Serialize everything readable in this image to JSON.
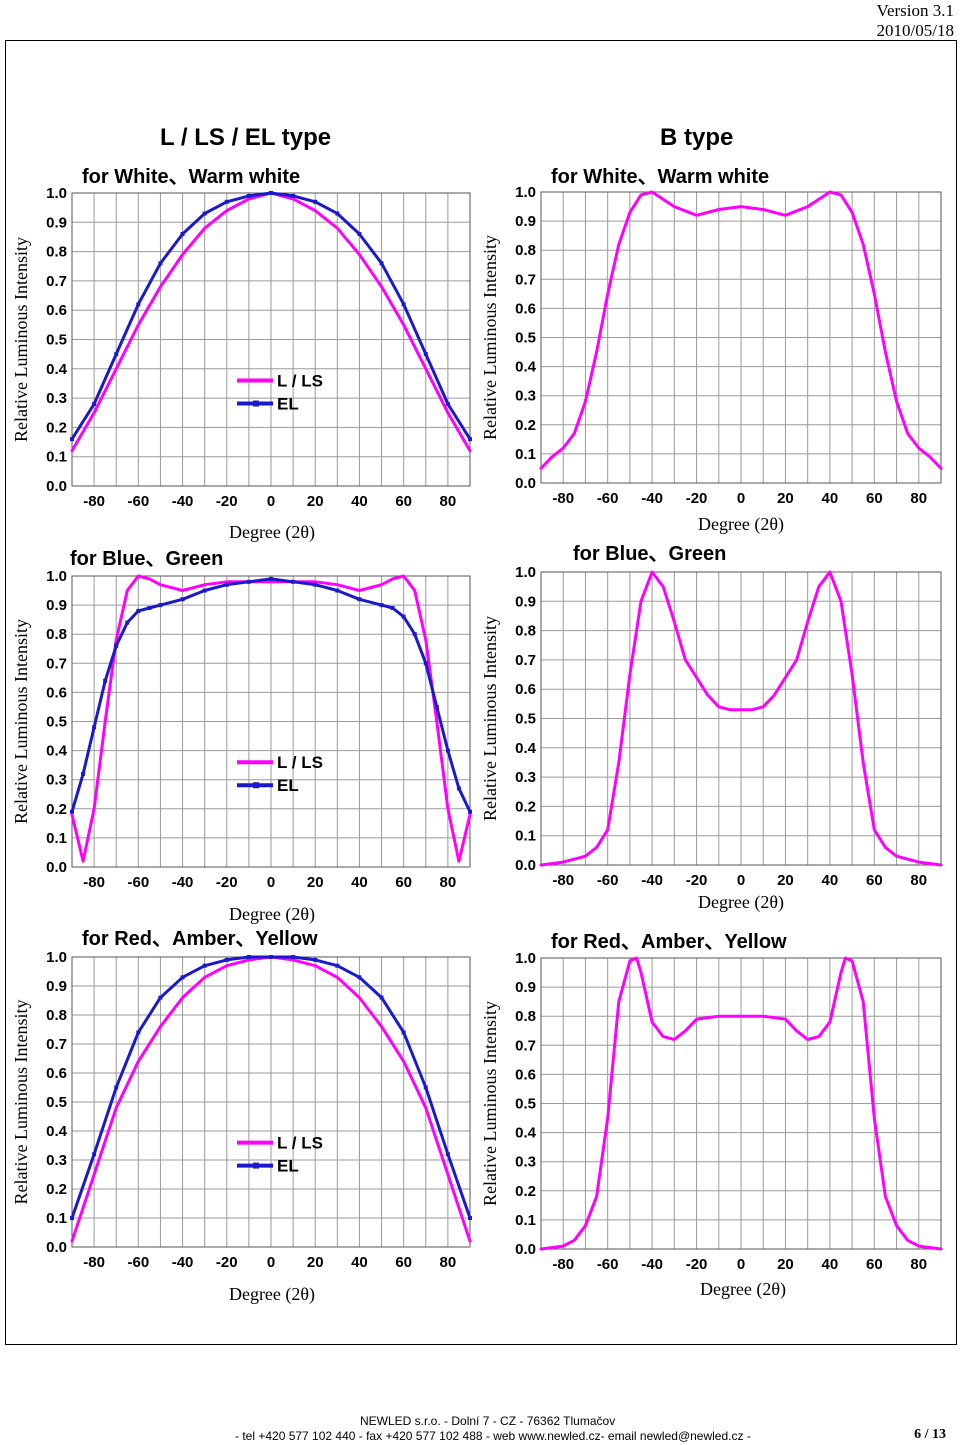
{
  "header": {
    "version": "Version 3.1",
    "date": "2010/05/18"
  },
  "footer": {
    "line1": "NEWLED s.r.o. - Dolní 7 - CZ - 76362 Tlumačov",
    "line2": "- tel +420 577 102 440 - fax +420 577 102 488 - web www.newled.cz- email newled@newled.cz -",
    "page": "6 / 13"
  },
  "sections": {
    "left_title": "L / LS / EL  type",
    "right_title": "B type"
  },
  "colors": {
    "ls": "#ff00ff",
    "el": "#1a1acc",
    "grid": "#9a9a9a"
  },
  "chart_data": [
    {
      "type": "line",
      "title": "for White、Warm white",
      "xlabel": "Degree (2θ)",
      "ylabel": "Relative Luminous Intensity",
      "xlim": [
        -90,
        90
      ],
      "ylim": [
        0,
        1
      ],
      "xticks": [
        "-80",
        "-60",
        "-40",
        "-20",
        "0",
        "20",
        "40",
        "60",
        "80"
      ],
      "yticks": [
        "0.0",
        "0.1",
        "0.2",
        "0.3",
        "0.4",
        "0.5",
        "0.6",
        "0.7",
        "0.8",
        "0.9",
        "1.0"
      ],
      "x": [
        -90,
        -80,
        -70,
        -60,
        -50,
        -40,
        -30,
        -20,
        -10,
        0,
        10,
        20,
        30,
        40,
        50,
        60,
        70,
        80,
        90
      ],
      "series": [
        {
          "name": "L / LS",
          "values": [
            0.12,
            0.25,
            0.4,
            0.55,
            0.68,
            0.79,
            0.88,
            0.94,
            0.98,
            1.0,
            0.98,
            0.94,
            0.88,
            0.79,
            0.68,
            0.55,
            0.4,
            0.25,
            0.12
          ]
        },
        {
          "name": "EL",
          "values": [
            0.16,
            0.28,
            0.45,
            0.62,
            0.76,
            0.86,
            0.93,
            0.97,
            0.99,
            1.0,
            0.99,
            0.97,
            0.93,
            0.86,
            0.76,
            0.62,
            0.45,
            0.28,
            0.16
          ]
        }
      ],
      "legend": "center-right",
      "grid": true
    },
    {
      "type": "line",
      "title": "for Blue、Green",
      "xlabel": "Degree (2θ)",
      "ylabel": "Relative Luminous Intensity",
      "xlim": [
        -90,
        90
      ],
      "ylim": [
        0,
        1
      ],
      "xticks": [
        "-80",
        "-60",
        "-40",
        "-20",
        "0",
        "20",
        "40",
        "60",
        "80"
      ],
      "yticks": [
        "0.0",
        "0.1",
        "0.2",
        "0.3",
        "0.4",
        "0.5",
        "0.6",
        "0.7",
        "0.8",
        "0.9",
        "1.0"
      ],
      "x": [
        -90,
        -85,
        -80,
        -75,
        -70,
        -65,
        -60,
        -55,
        -50,
        -40,
        -30,
        -20,
        -10,
        0,
        10,
        20,
        30,
        40,
        50,
        55,
        60,
        65,
        70,
        75,
        80,
        85,
        90
      ],
      "series": [
        {
          "name": "L / LS",
          "values": [
            0.18,
            0.02,
            0.2,
            0.5,
            0.78,
            0.95,
            1.0,
            0.99,
            0.97,
            0.95,
            0.97,
            0.98,
            0.98,
            0.98,
            0.98,
            0.98,
            0.97,
            0.95,
            0.97,
            0.99,
            1.0,
            0.95,
            0.78,
            0.5,
            0.2,
            0.02,
            0.18
          ]
        },
        {
          "name": "EL",
          "values": [
            0.19,
            0.32,
            0.48,
            0.64,
            0.76,
            0.84,
            0.88,
            0.89,
            0.9,
            0.92,
            0.95,
            0.97,
            0.98,
            0.99,
            0.98,
            0.97,
            0.95,
            0.92,
            0.9,
            0.89,
            0.86,
            0.8,
            0.7,
            0.55,
            0.4,
            0.27,
            0.19
          ]
        }
      ],
      "legend": "center-right",
      "grid": true
    },
    {
      "type": "line",
      "title": "for Red、Amber、Yellow",
      "xlabel": "Degree (2θ)",
      "ylabel": "Relative Luminous Intensity",
      "xlim": [
        -90,
        90
      ],
      "ylim": [
        0,
        1
      ],
      "xticks": [
        "-80",
        "-60",
        "-40",
        "-20",
        "0",
        "20",
        "40",
        "60",
        "80"
      ],
      "yticks": [
        "0.0",
        "0.1",
        "0.2",
        "0.3",
        "0.4",
        "0.5",
        "0.6",
        "0.7",
        "0.8",
        "0.9",
        "1.0"
      ],
      "x": [
        -90,
        -80,
        -70,
        -60,
        -50,
        -40,
        -30,
        -20,
        -10,
        0,
        10,
        20,
        30,
        40,
        50,
        60,
        70,
        80,
        90
      ],
      "series": [
        {
          "name": "L / LS",
          "values": [
            0.02,
            0.25,
            0.48,
            0.64,
            0.76,
            0.86,
            0.93,
            0.97,
            0.99,
            1.0,
            0.99,
            0.97,
            0.93,
            0.86,
            0.76,
            0.64,
            0.48,
            0.25,
            0.02
          ]
        },
        {
          "name": "EL",
          "values": [
            0.1,
            0.32,
            0.55,
            0.74,
            0.86,
            0.93,
            0.97,
            0.99,
            1.0,
            1.0,
            1.0,
            0.99,
            0.97,
            0.93,
            0.86,
            0.74,
            0.55,
            0.32,
            0.1
          ]
        }
      ],
      "legend": "center-right",
      "grid": true
    },
    {
      "type": "line",
      "title": "for White、Warm white",
      "xlabel": "Degree (2θ)",
      "ylabel": "Relative Luminous Intensity",
      "xlim": [
        -90,
        90
      ],
      "ylim": [
        0,
        1
      ],
      "xticks": [
        "-80",
        "-60",
        "-40",
        "-20",
        "0",
        "20",
        "40",
        "60",
        "80"
      ],
      "yticks": [
        "0.0",
        "0.1",
        "0.2",
        "0.3",
        "0.4",
        "0.5",
        "0.6",
        "0.7",
        "0.8",
        "0.9",
        "1.0"
      ],
      "x": [
        -90,
        -85,
        -80,
        -75,
        -70,
        -65,
        -60,
        -55,
        -50,
        -45,
        -40,
        -30,
        -20,
        -10,
        0,
        10,
        20,
        30,
        40,
        45,
        50,
        55,
        60,
        65,
        70,
        75,
        80,
        85,
        90
      ],
      "series": [
        {
          "values": [
            0.05,
            0.09,
            0.12,
            0.17,
            0.28,
            0.45,
            0.65,
            0.82,
            0.93,
            0.99,
            1.0,
            0.95,
            0.92,
            0.94,
            0.95,
            0.94,
            0.92,
            0.95,
            1.0,
            0.99,
            0.93,
            0.82,
            0.65,
            0.45,
            0.28,
            0.17,
            0.12,
            0.09,
            0.05
          ]
        }
      ],
      "grid": true
    },
    {
      "type": "line",
      "title": "for Blue、Green",
      "xlabel": "Degree (2θ)",
      "ylabel": "Relative Luminous Intensity",
      "xlim": [
        -90,
        90
      ],
      "ylim": [
        0,
        1
      ],
      "xticks": [
        "-80",
        "-60",
        "-40",
        "-20",
        "0",
        "20",
        "40",
        "60",
        "80"
      ],
      "yticks": [
        "0.0",
        "0.1",
        "0.2",
        "0.3",
        "0.4",
        "0.5",
        "0.6",
        "0.7",
        "0.8",
        "0.9",
        "1.0"
      ],
      "x": [
        -90,
        -80,
        -70,
        -65,
        -60,
        -55,
        -50,
        -45,
        -40,
        -35,
        -30,
        -25,
        -20,
        -15,
        -10,
        -5,
        0,
        5,
        10,
        15,
        20,
        25,
        30,
        35,
        40,
        45,
        50,
        55,
        60,
        65,
        70,
        80,
        90
      ],
      "series": [
        {
          "values": [
            0.0,
            0.01,
            0.03,
            0.06,
            0.12,
            0.35,
            0.65,
            0.9,
            1.0,
            0.95,
            0.83,
            0.7,
            0.64,
            0.58,
            0.54,
            0.53,
            0.53,
            0.53,
            0.54,
            0.58,
            0.64,
            0.7,
            0.83,
            0.95,
            1.0,
            0.9,
            0.65,
            0.35,
            0.12,
            0.06,
            0.03,
            0.01,
            0.0
          ]
        }
      ],
      "grid": true
    },
    {
      "type": "line",
      "title": "for Red、Amber、Yellow",
      "xlabel": "Degree (2θ)",
      "ylabel": "Relative Luminous Intensity",
      "xlim": [
        -90,
        90
      ],
      "ylim": [
        0,
        1
      ],
      "xticks": [
        "-80",
        "-60",
        "-40",
        "-20",
        "0",
        "20",
        "40",
        "60",
        "80"
      ],
      "yticks": [
        "0.0",
        "0.1",
        "0.2",
        "0.3",
        "0.4",
        "0.5",
        "0.6",
        "0.7",
        "0.8",
        "0.9",
        "1.0"
      ],
      "x": [
        -90,
        -80,
        -75,
        -70,
        -65,
        -60,
        -55,
        -50,
        -47,
        -45,
        -40,
        -35,
        -30,
        -25,
        -20,
        -10,
        0,
        10,
        20,
        25,
        30,
        35,
        40,
        45,
        47,
        50,
        55,
        60,
        65,
        70,
        75,
        80,
        90
      ],
      "series": [
        {
          "values": [
            0.0,
            0.01,
            0.03,
            0.08,
            0.18,
            0.45,
            0.85,
            0.99,
            1.0,
            0.95,
            0.78,
            0.73,
            0.72,
            0.75,
            0.79,
            0.8,
            0.8,
            0.8,
            0.79,
            0.75,
            0.72,
            0.73,
            0.78,
            0.95,
            1.0,
            0.99,
            0.85,
            0.45,
            0.18,
            0.08,
            0.03,
            0.01,
            0.0
          ]
        }
      ],
      "grid": true
    }
  ]
}
